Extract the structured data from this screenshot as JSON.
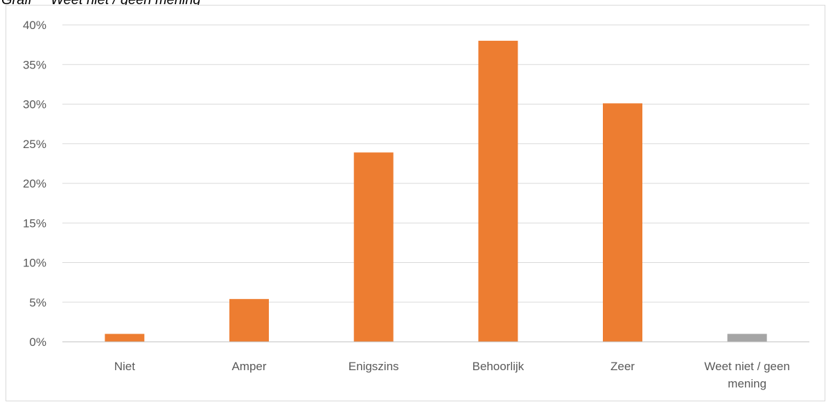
{
  "caption_fragment": "Grafi     Weet niet / geen mening",
  "chart_data": {
    "type": "bar",
    "categories": [
      "Niet",
      "Amper",
      "Enigszins",
      "Behoorlijk",
      "Zeer",
      "Weet niet / geen mening"
    ],
    "values": [
      1,
      5.4,
      23.9,
      38,
      30.1,
      1
    ],
    "bar_colors": [
      "#ED7D31",
      "#ED7D31",
      "#ED7D31",
      "#ED7D31",
      "#ED7D31",
      "#A5A5A5"
    ],
    "ylim": [
      0,
      40
    ],
    "yticks": [
      0,
      5,
      10,
      15,
      20,
      25,
      30,
      35,
      40
    ],
    "ytick_labels": [
      "0%",
      "5%",
      "10%",
      "15%",
      "20%",
      "25%",
      "30%",
      "35%",
      "40%"
    ],
    "title": "",
    "xlabel": "",
    "ylabel": "",
    "grid": true,
    "legend": "none"
  },
  "colors": {
    "gridline": "#D9D9D9",
    "axis": "#BFBFBF",
    "label": "#595959"
  }
}
